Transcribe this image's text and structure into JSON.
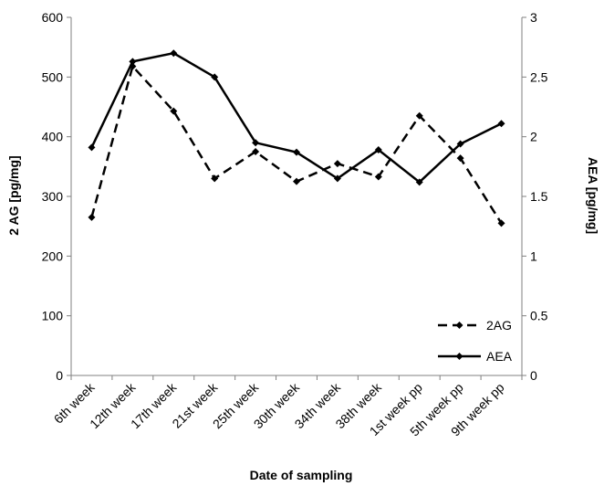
{
  "chart_data": {
    "type": "line",
    "categories": [
      "6th week",
      "12th week",
      "17th week",
      "21st week",
      "25th week",
      "30th week",
      "34th week",
      "38th week",
      "1st week pp",
      "5th week pp",
      "9th week pp"
    ],
    "xlabel": "Date of sampling",
    "ylabel_left": "2 AG [pg/mg]",
    "ylabel_right": "AEA [pg/mg]",
    "ylim_left": [
      0,
      600
    ],
    "ylim_right": [
      0,
      3
    ],
    "yticks_left": [
      "0",
      "100",
      "200",
      "300",
      "400",
      "500",
      "600"
    ],
    "yticks_right": [
      "0",
      "0.5",
      "1",
      "1.5",
      "2",
      "2.5",
      "3"
    ],
    "grid": false,
    "legend_position": "bottom-right",
    "series": [
      {
        "name": "2AG",
        "axis": "left",
        "style": "dashed",
        "color": "#000000",
        "values": [
          265,
          518,
          443,
          330,
          375,
          325,
          355,
          333,
          435,
          364,
          255
        ]
      },
      {
        "name": "AEA",
        "axis": "right",
        "style": "solid",
        "color": "#000000",
        "values": [
          1.91,
          2.63,
          2.7,
          2.5,
          1.95,
          1.87,
          1.65,
          1.89,
          1.62,
          1.94,
          2.11
        ]
      }
    ]
  }
}
